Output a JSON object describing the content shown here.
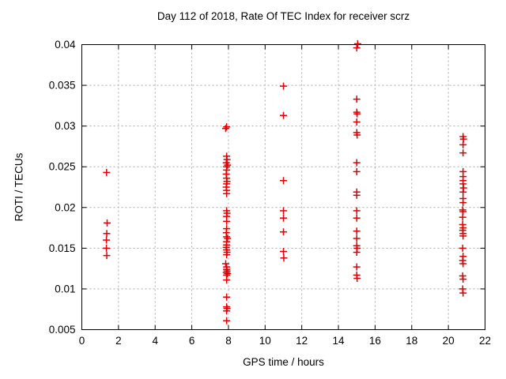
{
  "title": "Day 112 of 2018, Rate Of TEC Index for receiver scrz",
  "chart_data": {
    "type": "scatter",
    "title": "Day 112 of 2018, Rate Of TEC Index for receiver scrz",
    "xlabel": "GPS time / hours",
    "ylabel": "ROTI / TECUs",
    "xlim": [
      0,
      22
    ],
    "ylim": [
      0.005,
      0.04
    ],
    "x_tick_values": [
      0,
      2,
      4,
      6,
      8,
      10,
      12,
      14,
      16,
      18,
      20,
      22
    ],
    "x_tick_labels": [
      "0",
      "2",
      "4",
      "6",
      "8",
      "10",
      "12",
      "14",
      "16",
      "18",
      "20",
      "22"
    ],
    "y_tick_values": [
      0.005,
      0.01,
      0.015,
      0.02,
      0.025,
      0.03,
      0.035,
      0.04
    ],
    "y_tick_labels": [
      "0.005",
      "0.01",
      "0.015",
      "0.02",
      "0.025",
      "0.03",
      "0.035",
      "0.04"
    ],
    "grid": true,
    "legend": "none",
    "marker": "plus",
    "series": [
      {
        "name": "ROTI",
        "points": [
          [
            1.35,
            0.0243
          ],
          [
            1.38,
            0.0181
          ],
          [
            1.36,
            0.0168
          ],
          [
            1.34,
            0.016
          ],
          [
            1.34,
            0.015
          ],
          [
            1.36,
            0.0141
          ],
          [
            7.9,
            0.0299
          ],
          [
            7.85,
            0.0297
          ],
          [
            7.9,
            0.0263
          ],
          [
            7.92,
            0.0259
          ],
          [
            7.88,
            0.0255
          ],
          [
            7.95,
            0.0252
          ],
          [
            7.9,
            0.025
          ],
          [
            7.9,
            0.0246
          ],
          [
            7.88,
            0.0241
          ],
          [
            7.9,
            0.0236
          ],
          [
            7.92,
            0.0232
          ],
          [
            7.9,
            0.0229
          ],
          [
            7.88,
            0.0225
          ],
          [
            7.9,
            0.0221
          ],
          [
            7.9,
            0.0217
          ],
          [
            7.9,
            0.0196
          ],
          [
            7.92,
            0.0193
          ],
          [
            7.9,
            0.0189
          ],
          [
            7.9,
            0.0183
          ],
          [
            7.9,
            0.0174
          ],
          [
            7.88,
            0.0169
          ],
          [
            7.9,
            0.0164
          ],
          [
            7.95,
            0.0162
          ],
          [
            7.9,
            0.0158
          ],
          [
            7.9,
            0.0154
          ],
          [
            7.88,
            0.0151
          ],
          [
            7.9,
            0.0148
          ],
          [
            7.92,
            0.0145
          ],
          [
            7.9,
            0.0142
          ],
          [
            7.85,
            0.0131
          ],
          [
            7.9,
            0.0127
          ],
          [
            7.9,
            0.0124
          ],
          [
            7.92,
            0.0122
          ],
          [
            7.88,
            0.012
          ],
          [
            7.95,
            0.0119
          ],
          [
            7.9,
            0.0117
          ],
          [
            7.9,
            0.0111
          ],
          [
            7.9,
            0.009
          ],
          [
            7.9,
            0.0078
          ],
          [
            7.92,
            0.0076
          ],
          [
            7.9,
            0.0073
          ],
          [
            7.9,
            0.0061
          ],
          [
            11.0,
            0.0349
          ],
          [
            11.0,
            0.0313
          ],
          [
            11.0,
            0.0233
          ],
          [
            11.0,
            0.0196
          ],
          [
            11.0,
            0.0187
          ],
          [
            11.0,
            0.017
          ],
          [
            11.0,
            0.0146
          ],
          [
            11.02,
            0.0138
          ],
          [
            15.05,
            0.0401
          ],
          [
            15.0,
            0.0396
          ],
          [
            15.0,
            0.0333
          ],
          [
            15.0,
            0.0317
          ],
          [
            15.02,
            0.0315
          ],
          [
            15.0,
            0.0305
          ],
          [
            15.0,
            0.0292
          ],
          [
            15.02,
            0.0289
          ],
          [
            15.0,
            0.0255
          ],
          [
            15.0,
            0.0244
          ],
          [
            15.0,
            0.0219
          ],
          [
            15.0,
            0.0215
          ],
          [
            15.0,
            0.0196
          ],
          [
            15.0,
            0.0187
          ],
          [
            15.0,
            0.0171
          ],
          [
            15.0,
            0.0162
          ],
          [
            15.0,
            0.0153
          ],
          [
            15.02,
            0.015
          ],
          [
            15.0,
            0.0145
          ],
          [
            15.0,
            0.0127
          ],
          [
            15.0,
            0.0117
          ],
          [
            15.02,
            0.0113
          ],
          [
            20.8,
            0.0287
          ],
          [
            20.82,
            0.0284
          ],
          [
            20.8,
            0.0277
          ],
          [
            20.8,
            0.0267
          ],
          [
            20.8,
            0.0244
          ],
          [
            20.8,
            0.0238
          ],
          [
            20.8,
            0.0233
          ],
          [
            20.8,
            0.0229
          ],
          [
            20.82,
            0.0224
          ],
          [
            20.8,
            0.0219
          ],
          [
            20.8,
            0.0211
          ],
          [
            20.8,
            0.0206
          ],
          [
            20.78,
            0.0197
          ],
          [
            20.8,
            0.0195
          ],
          [
            20.78,
            0.0188
          ],
          [
            20.78,
            0.0179
          ],
          [
            20.8,
            0.0175
          ],
          [
            20.78,
            0.0172
          ],
          [
            20.8,
            0.0168
          ],
          [
            20.8,
            0.0165
          ],
          [
            20.78,
            0.015
          ],
          [
            20.8,
            0.014
          ],
          [
            20.78,
            0.0135
          ],
          [
            20.8,
            0.0131
          ],
          [
            20.78,
            0.0116
          ],
          [
            20.8,
            0.0112
          ],
          [
            20.78,
            0.01
          ],
          [
            20.8,
            0.0095
          ]
        ]
      }
    ]
  },
  "colors": {
    "marker": "#e00000",
    "axis": "#000000",
    "grid": "#a8a8a8",
    "background": "#ffffff",
    "text": "#000000"
  }
}
